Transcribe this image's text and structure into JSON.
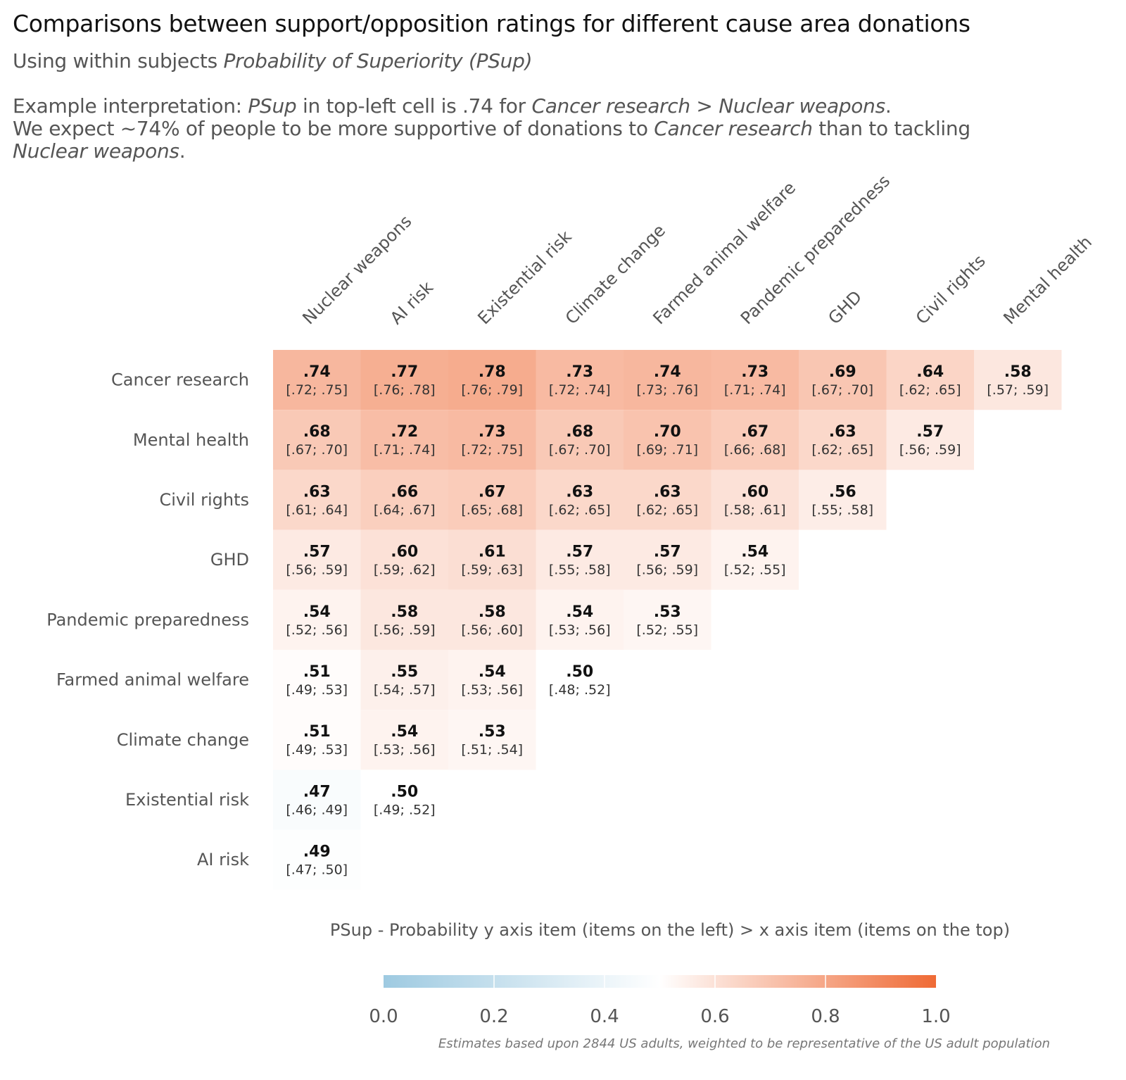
{
  "title": "Comparisons between support/opposition ratings for different cause area donations",
  "subtitle": {
    "prefix": "Using within subjects ",
    "italic": "Probability of Superiority (PSup)"
  },
  "note": {
    "line1": [
      {
        "t": "Example interpretation: ",
        "i": false
      },
      {
        "t": "PSup",
        "i": true
      },
      {
        "t": " in top-left cell is .74 for ",
        "i": false
      },
      {
        "t": "Cancer research",
        "i": true
      },
      {
        "t": " > ",
        "i": false
      },
      {
        "t": "Nuclear weapons",
        "i": true
      },
      {
        "t": ".",
        "i": false
      }
    ],
    "line2": [
      {
        "t": "We expect ~74% of people to be more supportive of donations to ",
        "i": false
      },
      {
        "t": "Cancer research",
        "i": true
      },
      {
        "t": " than to tackling",
        "i": false
      }
    ],
    "line3": [
      {
        "t": "Nuclear weapons",
        "i": true
      },
      {
        "t": ".",
        "i": false
      }
    ]
  },
  "footer": "Estimates based upon 2844 US adults, weighted to be representative of the US adult population",
  "chart_data": {
    "type": "heatmap",
    "title": "Comparisons between support/opposition ratings for different cause area donations",
    "x_labels": [
      "Nuclear weapons",
      "AI risk",
      "Existential risk",
      "Climate change",
      "Farmed animal welfare",
      "Pandemic preparedness",
      "GHD",
      "Civil rights",
      "Mental health"
    ],
    "y_labels": [
      "Cancer research",
      "Mental health",
      "Civil rights",
      "GHD",
      "Pandemic preparedness",
      "Farmed animal welfare",
      "Climate change",
      "Existential risk",
      "AI risk"
    ],
    "values": [
      [
        ".74",
        ".77",
        ".78",
        ".73",
        ".74",
        ".73",
        ".69",
        ".64",
        ".58"
      ],
      [
        ".68",
        ".72",
        ".73",
        ".68",
        ".70",
        ".67",
        ".63",
        ".57",
        null
      ],
      [
        ".63",
        ".66",
        ".67",
        ".63",
        ".63",
        ".60",
        ".56",
        null,
        null
      ],
      [
        ".57",
        ".60",
        ".61",
        ".57",
        ".57",
        ".54",
        null,
        null,
        null
      ],
      [
        ".54",
        ".58",
        ".58",
        ".54",
        ".53",
        null,
        null,
        null,
        null
      ],
      [
        ".51",
        ".55",
        ".54",
        ".50",
        null,
        null,
        null,
        null,
        null
      ],
      [
        ".51",
        ".54",
        ".53",
        null,
        null,
        null,
        null,
        null,
        null
      ],
      [
        ".47",
        ".50",
        null,
        null,
        null,
        null,
        null,
        null,
        null
      ],
      [
        ".49",
        null,
        null,
        null,
        null,
        null,
        null,
        null,
        null
      ]
    ],
    "intervals": [
      [
        "[.72; .75]",
        "[.76; .78]",
        "[.76; .79]",
        "[.72; .74]",
        "[.73; .76]",
        "[.71; .74]",
        "[.67; .70]",
        "[.62; .65]",
        "[.57; .59]"
      ],
      [
        "[.67; .70]",
        "[.71; .74]",
        "[.72; .75]",
        "[.67; .70]",
        "[.69; .71]",
        "[.66; .68]",
        "[.62; .65]",
        "[.56; .59]",
        null
      ],
      [
        "[.61; .64]",
        "[.64; .67]",
        "[.65; .68]",
        "[.62; .65]",
        "[.62; .65]",
        "[.58; .61]",
        "[.55; .58]",
        null,
        null
      ],
      [
        "[.56; .59]",
        "[.59; .62]",
        "[.59; .63]",
        "[.55; .58]",
        "[.56; .59]",
        "[.52; .55]",
        null,
        null,
        null
      ],
      [
        "[.52; .56]",
        "[.56; .59]",
        "[.56; .60]",
        "[.53; .56]",
        "[.52; .55]",
        null,
        null,
        null,
        null
      ],
      [
        "[.49; .53]",
        "[.54; .57]",
        "[.53; .56]",
        "[.48; .52]",
        null,
        null,
        null,
        null,
        null
      ],
      [
        "[.49; .53]",
        "[.53; .56]",
        "[.51; .54]",
        null,
        null,
        null,
        null,
        null,
        null
      ],
      [
        "[.46; .49]",
        "[.49; .52]",
        null,
        null,
        null,
        null,
        null,
        null,
        null
      ],
      [
        "[.47; .50]",
        null,
        null,
        null,
        null,
        null,
        null,
        null,
        null
      ]
    ],
    "legend": {
      "title": "PSup - Probability y axis item (items on the left) > x axis item (items on the top)",
      "ticks": [
        "0.0",
        "0.2",
        "0.4",
        "0.6",
        "0.8",
        "1.0"
      ],
      "range": [
        0,
        1
      ],
      "placement": "bottom",
      "colors": {
        "low": "#9ecae1",
        "mid": "#ffffff",
        "high": "#ef6a35"
      }
    }
  }
}
